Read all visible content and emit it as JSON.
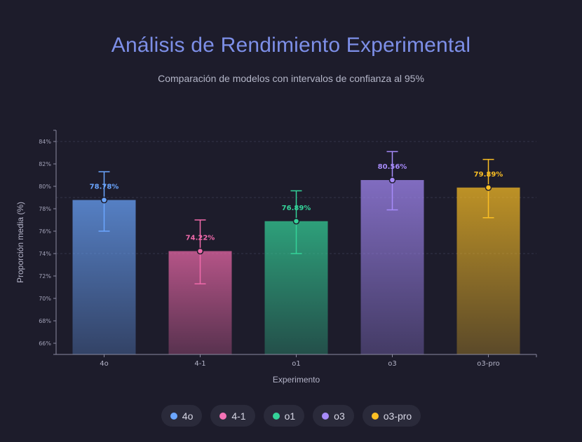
{
  "title": "Análisis de Rendimiento Experimental",
  "subtitle": "Comparación de modelos con intervalos de confianza al 95%",
  "chart_data": {
    "type": "bar",
    "title": "Análisis de Rendimiento Experimental",
    "subtitle": "Comparación de modelos con intervalos de confianza al 95%",
    "xlabel": "Experimento",
    "ylabel": "Proporción media (%)",
    "categories": [
      "4o",
      "4-1",
      "o1",
      "o3",
      "o3-pro"
    ],
    "values": [
      78.78,
      74.22,
      76.89,
      80.56,
      79.89
    ],
    "value_labels": [
      "78.78%",
      "74.22%",
      "76.89%",
      "80.56%",
      "79.89%"
    ],
    "ci_low": [
      76.0,
      71.3,
      74.0,
      77.9,
      77.2
    ],
    "ci_high": [
      81.3,
      77.0,
      79.6,
      83.1,
      82.4
    ],
    "colors": [
      "#6ba6ff",
      "#f06aab",
      "#34d399",
      "#a78bfa",
      "#fbbf24"
    ],
    "ylim": [
      65,
      85
    ],
    "yticks": [
      66,
      68,
      70,
      72,
      74,
      76,
      78,
      80,
      82,
      84
    ],
    "ytick_labels": [
      "66%",
      "68%",
      "70%",
      "72%",
      "74%",
      "76%",
      "78%",
      "80%",
      "82%",
      "84%"
    ],
    "grid": "dashed lines at 74%, 79%, 84%",
    "grid_lines": [
      74,
      79,
      84
    ],
    "legend": "bottom-center"
  },
  "legend_items": [
    {
      "label": "4o",
      "color": "#6ba6ff"
    },
    {
      "label": "4-1",
      "color": "#f472b6"
    },
    {
      "label": "o1",
      "color": "#34d399"
    },
    {
      "label": "o3",
      "color": "#a78bfa"
    },
    {
      "label": "o3-pro",
      "color": "#fbbf24"
    }
  ]
}
